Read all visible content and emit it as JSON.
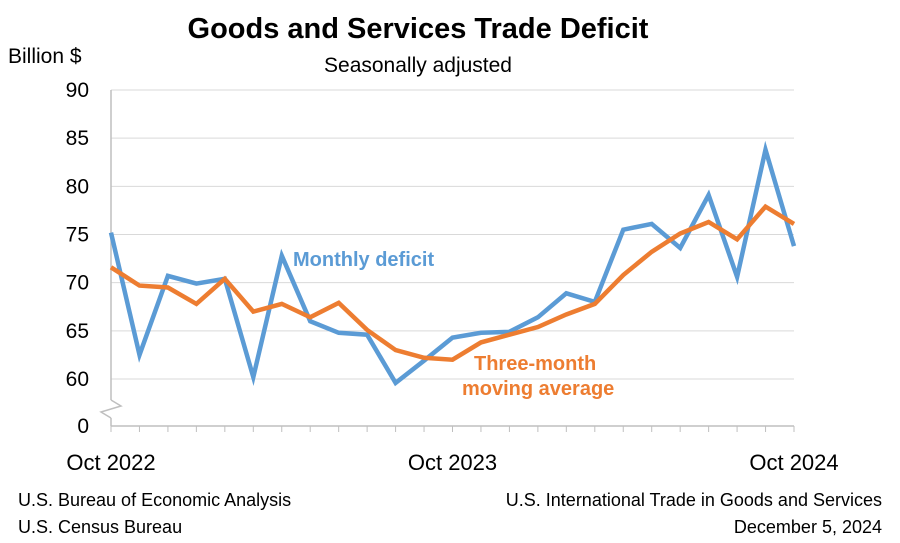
{
  "chart_data": {
    "type": "line",
    "title": "Goods and Services Trade Deficit",
    "subtitle": "Seasonally adjusted",
    "ylabel": "Billion $",
    "xlabel": "",
    "ylim": [
      55,
      90
    ],
    "axis_break": true,
    "yticks": [
      60,
      65,
      70,
      75,
      80,
      85,
      90
    ],
    "y_zero_label": "0",
    "xtick_labels": [
      {
        "index": 0,
        "label": "Oct 2022"
      },
      {
        "index": 12,
        "label": "Oct 2023"
      },
      {
        "index": 24,
        "label": "Oct 2024"
      }
    ],
    "x": [
      "Oct 2022",
      "Nov 2022",
      "Dec 2022",
      "Jan 2023",
      "Feb 2023",
      "Mar 2023",
      "Apr 2023",
      "May 2023",
      "Jun 2023",
      "Jul 2023",
      "Aug 2023",
      "Sep 2023",
      "Oct 2023",
      "Nov 2023",
      "Dec 2023",
      "Jan 2024",
      "Feb 2024",
      "Mar 2024",
      "Apr 2024",
      "May 2024",
      "Jun 2024",
      "Jul 2024",
      "Aug 2024",
      "Sep 2024",
      "Oct 2024"
    ],
    "series": [
      {
        "name": "Monthly deficit",
        "color": "#5b9bd5",
        "values": [
          75.2,
          62.5,
          70.7,
          69.9,
          70.4,
          60.2,
          72.8,
          66.0,
          64.8,
          64.6,
          59.6,
          61.9,
          64.3,
          64.8,
          64.9,
          66.4,
          68.9,
          68.0,
          75.5,
          76.1,
          73.6,
          79.1,
          70.6,
          83.8,
          73.8
        ]
      },
      {
        "name": "Three-month moving average",
        "color": "#ed7d31",
        "values": [
          71.6,
          69.7,
          69.5,
          67.8,
          70.4,
          67.0,
          67.8,
          66.4,
          67.9,
          65.1,
          63.0,
          62.2,
          62.0,
          63.8,
          64.6,
          65.4,
          66.7,
          67.8,
          70.8,
          73.2,
          75.1,
          76.3,
          74.5,
          77.9,
          76.1
        ]
      }
    ],
    "annotations": [
      {
        "series": 0,
        "text": "Monthly deficit"
      },
      {
        "series": 1,
        "text": "Three-month",
        "line2": "moving average"
      }
    ]
  },
  "footer": {
    "left_line1": "U.S. Bureau of Economic Analysis",
    "left_line2": "U.S. Census Bureau",
    "right_line1": "U.S. International Trade in Goods and Services",
    "right_line2": "December 5, 2024"
  }
}
